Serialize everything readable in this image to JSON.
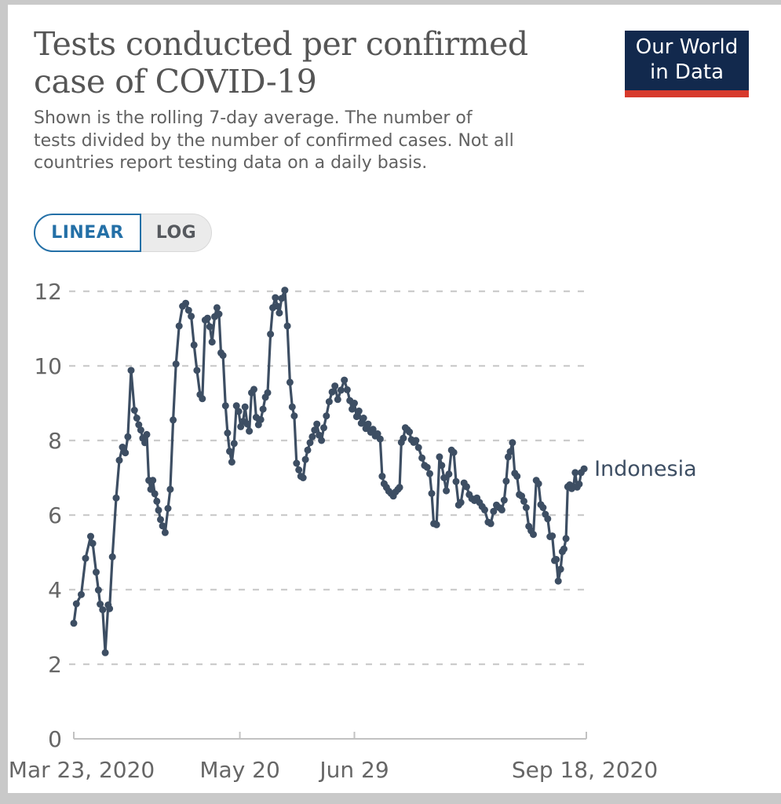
{
  "header": {
    "title_line1": "Tests conducted per confirmed",
    "title_line2": "case of COVID-19",
    "subtitle_line1": "Shown is the rolling 7-day average. The number of",
    "subtitle_line2": "tests divided by the number of confirmed cases. Not all",
    "subtitle_line3": "countries report testing data on a daily basis."
  },
  "logo": {
    "line1": "Our World",
    "line2": "in Data"
  },
  "toggle": {
    "linear_label": "LINEAR",
    "log_label": "LOG",
    "selected": "LINEAR"
  },
  "colors": {
    "line": "#3d4e63",
    "grid": "#cccccc",
    "axis": "#c2c2c2",
    "axis_label": "#666666",
    "title": "#555555",
    "subtitle": "#616161",
    "toggle_active": "#2470a7",
    "logo_bg": "#12294d",
    "logo_stripe": "#d73a2c"
  },
  "chart_data": {
    "type": "line",
    "title": "Tests conducted per confirmed case of COVID-19",
    "grid": "dashed horizontal",
    "legend_position": "end-of-line label",
    "y_axis": {
      "range": [
        0,
        12
      ],
      "ticks": [
        0,
        2,
        4,
        6,
        8,
        10,
        12
      ]
    },
    "x_axis": {
      "range_days": [
        0,
        179
      ],
      "ticks": [
        {
          "label": "Mar 23, 2020",
          "day": 0
        },
        {
          "label": "May 20",
          "day": 58
        },
        {
          "label": "Jun 29",
          "day": 98
        },
        {
          "label": "Sep 18, 2020",
          "day": 179
        }
      ]
    },
    "series": [
      {
        "name": "Indonesia",
        "points": [
          [
            0,
            3.1
          ],
          [
            0.9,
            3.62
          ],
          [
            2.6,
            3.87
          ],
          [
            4.1,
            4.84
          ],
          [
            5.9,
            5.43
          ],
          [
            6.6,
            5.24
          ],
          [
            7.8,
            4.47
          ],
          [
            8.6,
            3.99
          ],
          [
            9.2,
            3.61
          ],
          [
            10.1,
            3.46
          ],
          [
            11,
            2.31
          ],
          [
            12,
            3.59
          ],
          [
            12.5,
            3.49
          ],
          [
            13.5,
            4.88
          ],
          [
            14.8,
            6.46
          ],
          [
            15.9,
            7.47
          ],
          [
            17,
            7.82
          ],
          [
            18,
            7.67
          ],
          [
            18.9,
            8.1
          ],
          [
            20,
            9.88
          ],
          [
            21.2,
            8.81
          ],
          [
            22,
            8.6
          ],
          [
            22.7,
            8.42
          ],
          [
            23.4,
            8.28
          ],
          [
            24.1,
            8.06
          ],
          [
            24.8,
            7.94
          ],
          [
            25.5,
            8.16
          ],
          [
            26.2,
            6.93
          ],
          [
            26.9,
            6.69
          ],
          [
            27.6,
            6.93
          ],
          [
            28.3,
            6.57
          ],
          [
            29,
            6.37
          ],
          [
            29.6,
            6.13
          ],
          [
            30.3,
            5.88
          ],
          [
            31,
            5.71
          ],
          [
            31.9,
            5.53
          ],
          [
            32.9,
            6.18
          ],
          [
            33.7,
            6.69
          ],
          [
            34.7,
            8.55
          ],
          [
            35.7,
            10.05
          ],
          [
            36.8,
            11.07
          ],
          [
            38,
            11.6
          ],
          [
            39.1,
            11.68
          ],
          [
            40.1,
            11.49
          ],
          [
            41,
            11.33
          ],
          [
            42,
            10.56
          ],
          [
            43,
            9.88
          ],
          [
            44.1,
            9.23
          ],
          [
            44.9,
            9.12
          ],
          [
            45.9,
            11.23
          ],
          [
            46.7,
            11.28
          ],
          [
            47.5,
            11.05
          ],
          [
            48.3,
            10.64
          ],
          [
            49.2,
            11.32
          ],
          [
            50,
            11.56
          ],
          [
            50.7,
            11.39
          ],
          [
            51.4,
            10.35
          ],
          [
            52.1,
            10.28
          ],
          [
            53,
            8.93
          ],
          [
            53.7,
            8.2
          ],
          [
            54.4,
            7.71
          ],
          [
            55.2,
            7.42
          ],
          [
            56,
            7.92
          ],
          [
            56.8,
            8.93
          ],
          [
            57.6,
            8.78
          ],
          [
            58.3,
            8.37
          ],
          [
            59.1,
            8.51
          ],
          [
            59.8,
            8.9
          ],
          [
            60.6,
            8.44
          ],
          [
            61.3,
            8.25
          ],
          [
            62.1,
            9.28
          ],
          [
            62.9,
            9.37
          ],
          [
            63.7,
            8.62
          ],
          [
            64.5,
            8.42
          ],
          [
            65.3,
            8.56
          ],
          [
            66.1,
            8.84
          ],
          [
            66.9,
            9.16
          ],
          [
            67.7,
            9.28
          ],
          [
            68.7,
            10.85
          ],
          [
            69.5,
            11.56
          ],
          [
            70.4,
            11.83
          ],
          [
            71.1,
            11.6
          ],
          [
            71.8,
            11.42
          ],
          [
            72.6,
            11.81
          ],
          [
            73.7,
            12.03
          ],
          [
            74.6,
            11.07
          ],
          [
            75.5,
            9.56
          ],
          [
            76.3,
            8.9
          ],
          [
            77,
            8.66
          ],
          [
            77.8,
            7.39
          ],
          [
            78.6,
            7.21
          ],
          [
            79.3,
            7.04
          ],
          [
            80.1,
            7.0
          ],
          [
            80.9,
            7.49
          ],
          [
            81.7,
            7.74
          ],
          [
            82.5,
            7.94
          ],
          [
            83.3,
            8.1
          ],
          [
            84.1,
            8.28
          ],
          [
            84.9,
            8.44
          ],
          [
            85.7,
            8.14
          ],
          [
            86.5,
            8.0
          ],
          [
            87.3,
            8.34
          ],
          [
            88.2,
            8.66
          ],
          [
            89.2,
            9.04
          ],
          [
            90.2,
            9.3
          ],
          [
            91.2,
            9.46
          ],
          [
            92.2,
            9.1
          ],
          [
            93.3,
            9.35
          ],
          [
            94.5,
            9.62
          ],
          [
            95.5,
            9.36
          ],
          [
            96.4,
            9.07
          ],
          [
            97.2,
            8.84
          ],
          [
            98,
            9.0
          ],
          [
            98.8,
            8.64
          ],
          [
            99.6,
            8.79
          ],
          [
            100.4,
            8.46
          ],
          [
            101.2,
            8.6
          ],
          [
            102,
            8.32
          ],
          [
            102.8,
            8.44
          ],
          [
            103.7,
            8.22
          ],
          [
            104.5,
            8.3
          ],
          [
            105.3,
            8.12
          ],
          [
            106.1,
            8.18
          ],
          [
            107,
            8.04
          ],
          [
            107.7,
            7.04
          ],
          [
            108.4,
            6.84
          ],
          [
            109.2,
            6.74
          ],
          [
            110,
            6.64
          ],
          [
            110.8,
            6.58
          ],
          [
            111.6,
            6.51
          ],
          [
            112.4,
            6.62
          ],
          [
            113.2,
            6.69
          ],
          [
            113.8,
            6.74
          ],
          [
            114.4,
            7.95
          ],
          [
            115.1,
            8.06
          ],
          [
            115.8,
            8.34
          ],
          [
            116.5,
            8.29
          ],
          [
            117.2,
            8.23
          ],
          [
            117.9,
            8.02
          ],
          [
            118.7,
            7.95
          ],
          [
            119.5,
            8.0
          ],
          [
            120.4,
            7.81
          ],
          [
            121.6,
            7.53
          ],
          [
            122.5,
            7.33
          ],
          [
            123.4,
            7.28
          ],
          [
            124.3,
            7.11
          ],
          [
            125,
            6.58
          ],
          [
            125.7,
            5.77
          ],
          [
            126.7,
            5.74
          ],
          [
            127.7,
            7.56
          ],
          [
            128.5,
            7.33
          ],
          [
            129.3,
            7.0
          ],
          [
            130.1,
            6.65
          ],
          [
            131,
            7.1
          ],
          [
            131.9,
            7.74
          ],
          [
            132.7,
            7.68
          ],
          [
            133.5,
            6.9
          ],
          [
            134.4,
            6.27
          ],
          [
            135.2,
            6.34
          ],
          [
            136.3,
            6.86
          ],
          [
            137.2,
            6.76
          ],
          [
            138.1,
            6.55
          ],
          [
            139,
            6.44
          ],
          [
            139.9,
            6.39
          ],
          [
            140.8,
            6.46
          ],
          [
            141.7,
            6.34
          ],
          [
            142.6,
            6.23
          ],
          [
            143.5,
            6.14
          ],
          [
            144.7,
            5.81
          ],
          [
            145.6,
            5.77
          ],
          [
            146.6,
            6.1
          ],
          [
            147.6,
            6.27
          ],
          [
            148.6,
            6.2
          ],
          [
            149.5,
            6.14
          ],
          [
            150.3,
            6.4
          ],
          [
            151,
            6.91
          ],
          [
            151.7,
            7.56
          ],
          [
            152.4,
            7.7
          ],
          [
            153.2,
            7.94
          ],
          [
            154,
            7.12
          ],
          [
            154.8,
            7.04
          ],
          [
            155.6,
            6.55
          ],
          [
            156.4,
            6.51
          ],
          [
            157.2,
            6.37
          ],
          [
            158,
            6.2
          ],
          [
            158.9,
            5.7
          ],
          [
            159.7,
            5.58
          ],
          [
            160.5,
            5.48
          ],
          [
            161.5,
            6.93
          ],
          [
            162.3,
            6.84
          ],
          [
            163.1,
            6.28
          ],
          [
            163.9,
            6.2
          ],
          [
            164.7,
            6.02
          ],
          [
            165.5,
            5.9
          ],
          [
            166.3,
            5.42
          ],
          [
            167.1,
            5.44
          ],
          [
            167.9,
            4.78
          ],
          [
            168.5,
            4.81
          ],
          [
            169.2,
            4.23
          ],
          [
            170,
            4.55
          ],
          [
            170.6,
            5.02
          ],
          [
            171.2,
            5.09
          ],
          [
            171.9,
            5.37
          ],
          [
            172.5,
            6.76
          ],
          [
            173.2,
            6.81
          ],
          [
            173.9,
            6.71
          ],
          [
            174.5,
            6.76
          ],
          [
            175.1,
            7.14
          ],
          [
            175.8,
            6.75
          ],
          [
            176.5,
            6.83
          ],
          [
            177.2,
            7.14
          ],
          [
            178.2,
            7.24
          ]
        ]
      }
    ]
  }
}
